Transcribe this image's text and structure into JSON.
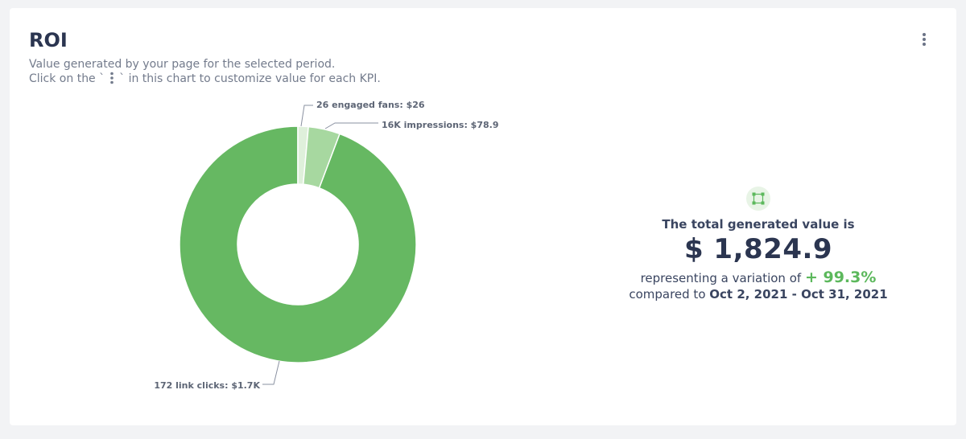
{
  "card": {
    "title": "ROI",
    "subtitle_line1": "Value generated by your page for the selected period.",
    "subtitle_line2_before": "Click on the `",
    "subtitle_line2_after": "` in this chart to customize value for each KPI."
  },
  "icons": {
    "menu": "vertical-ellipsis-icon",
    "badge": "selection-square-icon"
  },
  "colors": {
    "link_clicks": "#66b862",
    "impressions": "#a7d8a0",
    "engaged_fans": "#dff0db",
    "accent_positive": "#5cb85c",
    "text_dark": "#2b3550",
    "text_muted": "#737b8c"
  },
  "chart_data": {
    "type": "pie",
    "variant": "donut",
    "slices": [
      {
        "label": "172 link clicks: $1.7K",
        "value": 1720,
        "color": "#66b862"
      },
      {
        "label": "26 engaged fans: $26",
        "value": 26,
        "color": "#dff0db"
      },
      {
        "label": "16K impressions: $78.9",
        "value": 78.9,
        "color": "#a7d8a0"
      }
    ]
  },
  "summary": {
    "label": "The total generated value is",
    "value": "$ 1,824.9",
    "variation_prefix": "representing a variation of",
    "variation_value": "+ 99.3%",
    "compare_prefix": "compared to",
    "compare_range": "Oct 2, 2021 - Oct 31, 2021"
  }
}
